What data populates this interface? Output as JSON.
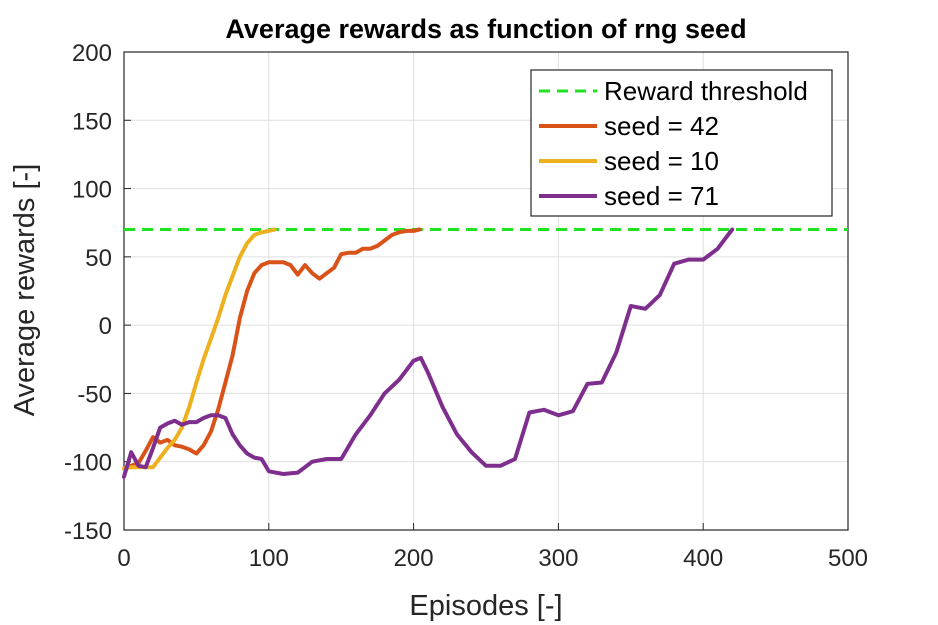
{
  "chart_data": {
    "type": "line",
    "title": "Average rewards as function of rng seed",
    "xlabel": "Episodes [-]",
    "ylabel": "Average rewards [-]",
    "xlim": [
      0,
      500
    ],
    "ylim": [
      -150,
      200
    ],
    "xticks": [
      "0",
      "100",
      "200",
      "300",
      "400",
      "500"
    ],
    "yticks": [
      "-150",
      "-100",
      "-50",
      "0",
      "50",
      "100",
      "150",
      "200"
    ],
    "grid": true,
    "legend_position": "top-right",
    "threshold": {
      "name": "Reward threshold",
      "y": 70,
      "color": "#22e022",
      "style": "dashed"
    },
    "series": [
      {
        "name": "seed = 42",
        "color": "#d95319",
        "x": [
          0,
          5,
          10,
          15,
          20,
          25,
          30,
          35,
          40,
          45,
          50,
          55,
          60,
          65,
          70,
          75,
          80,
          85,
          90,
          95,
          100,
          105,
          110,
          115,
          120,
          125,
          130,
          135,
          140,
          145,
          150,
          155,
          160,
          165,
          170,
          175,
          180,
          185,
          190,
          195,
          200,
          204
        ],
        "y": [
          -105,
          -103,
          -101,
          -92,
          -82,
          -86,
          -84,
          -88,
          -89,
          -91,
          -94,
          -88,
          -78,
          -62,
          -42,
          -22,
          5,
          25,
          38,
          44,
          46,
          46,
          46,
          44,
          37,
          44,
          38,
          34,
          38,
          42,
          52,
          53,
          53,
          56,
          56,
          58,
          62,
          66,
          68,
          69,
          69,
          70
        ]
      },
      {
        "name": "seed = 10",
        "color": "#edb120",
        "x": [
          0,
          5,
          10,
          15,
          20,
          25,
          30,
          35,
          40,
          45,
          50,
          55,
          60,
          65,
          70,
          75,
          80,
          85,
          90,
          95,
          100,
          104
        ],
        "y": [
          -105,
          -104,
          -104,
          -104,
          -104,
          -97,
          -90,
          -84,
          -75,
          -60,
          -42,
          -25,
          -10,
          5,
          22,
          36,
          50,
          60,
          66,
          68,
          69,
          70
        ]
      },
      {
        "name": "seed = 71",
        "color": "#7e2f8e",
        "x": [
          0,
          5,
          10,
          15,
          20,
          25,
          30,
          35,
          40,
          45,
          50,
          55,
          60,
          65,
          70,
          75,
          80,
          85,
          90,
          95,
          100,
          110,
          120,
          130,
          140,
          150,
          160,
          170,
          180,
          190,
          200,
          205,
          210,
          220,
          230,
          240,
          250,
          255,
          260,
          270,
          280,
          290,
          300,
          310,
          320,
          330,
          340,
          350,
          360,
          370,
          380,
          390,
          400,
          410,
          415,
          420
        ],
        "y": [
          -111,
          -93,
          -103,
          -104,
          -90,
          -75,
          -72,
          -70,
          -73,
          -71,
          -71,
          -68,
          -66,
          -66,
          -68,
          -80,
          -88,
          -94,
          -97,
          -98,
          -107,
          -109,
          -108,
          -100,
          -98,
          -98,
          -80,
          -66,
          -50,
          -40,
          -26,
          -24,
          -35,
          -60,
          -80,
          -93,
          -103,
          -103,
          -103,
          -98,
          -64,
          -62,
          -66,
          -63,
          -43,
          -42,
          -20,
          14,
          12,
          22,
          45,
          48,
          48,
          56,
          63,
          70
        ]
      }
    ]
  }
}
